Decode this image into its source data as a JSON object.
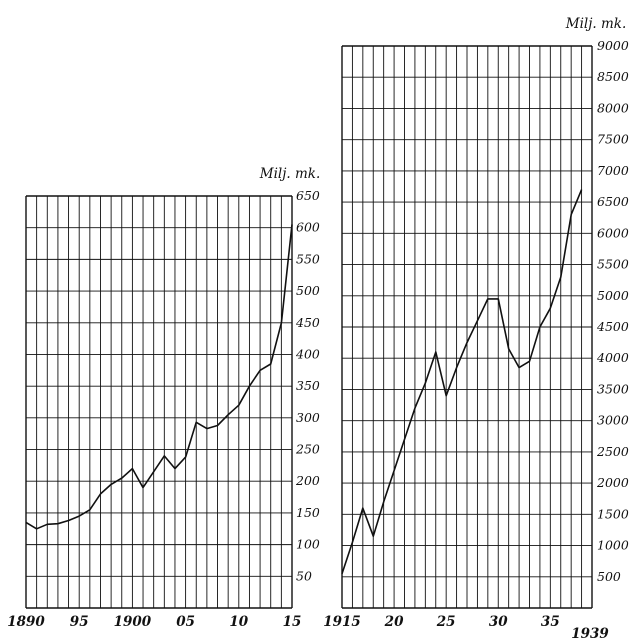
{
  "colors": {
    "ink": "#111111",
    "paper": "#ffffff"
  },
  "chart_data": [
    {
      "type": "line",
      "title": "",
      "unit_label": "Milj. mk.",
      "xlabel": "",
      "ylabel": "",
      "xlim": [
        1890,
        1915
      ],
      "ylim": [
        0,
        650
      ],
      "grid": true,
      "yticks": [
        "50",
        "100",
        "150",
        "200",
        "250",
        "300",
        "350",
        "400",
        "450",
        "500",
        "550",
        "600",
        "650"
      ],
      "xticks": [
        {
          "value": 1890,
          "label": "1890"
        },
        {
          "value": 1895,
          "label": "95"
        },
        {
          "value": 1900,
          "label": "1900"
        },
        {
          "value": 1905,
          "label": "05"
        },
        {
          "value": 1910,
          "label": "10"
        },
        {
          "value": 1915,
          "label": "15"
        }
      ],
      "series": [
        {
          "x": [
            1890,
            1891,
            1892,
            1893,
            1894,
            1895,
            1896,
            1897,
            1898,
            1899,
            1900,
            1901,
            1902,
            1903,
            1904,
            1905,
            1906,
            1907,
            1908,
            1909,
            1910,
            1911,
            1912,
            1913,
            1914,
            1915
          ],
          "values": [
            135,
            125,
            132,
            133,
            138,
            145,
            155,
            180,
            195,
            205,
            220,
            190,
            215,
            240,
            220,
            238,
            293,
            283,
            288,
            305,
            320,
            350,
            375,
            385,
            450,
            605
          ]
        }
      ]
    },
    {
      "type": "line",
      "title": "",
      "unit_label": "Milj. mk.",
      "xlabel": "",
      "ylabel": "",
      "xlim": [
        1915,
        1939
      ],
      "ylim": [
        0,
        9000
      ],
      "grid": true,
      "yticks": [
        "500",
        "1000",
        "1500",
        "2000",
        "2500",
        "3000",
        "3500",
        "4000",
        "4500",
        "5000",
        "5500",
        "6000",
        "6500",
        "7000",
        "7500",
        "8000",
        "8500",
        "9000"
      ],
      "xticks": [
        {
          "value": 1915,
          "label": "1915"
        },
        {
          "value": 1920,
          "label": "20"
        },
        {
          "value": 1925,
          "label": "25"
        },
        {
          "value": 1930,
          "label": "30"
        },
        {
          "value": 1935,
          "label": "35"
        },
        {
          "value": 1939,
          "label": "1939"
        }
      ],
      "series": [
        {
          "x": [
            1915,
            1916,
            1917,
            1918,
            1919,
            1920,
            1921,
            1922,
            1923,
            1924,
            1925,
            1926,
            1927,
            1928,
            1929,
            1930,
            1931,
            1932,
            1933,
            1934,
            1935,
            1936,
            1937,
            1938
          ],
          "values": [
            550,
            1050,
            1600,
            1150,
            1700,
            2200,
            2700,
            3200,
            3600,
            4100,
            3400,
            3850,
            4250,
            4600,
            4950,
            4950,
            4150,
            3850,
            3950,
            4500,
            4800,
            5300,
            6300,
            6700
          ]
        }
      ]
    }
  ]
}
